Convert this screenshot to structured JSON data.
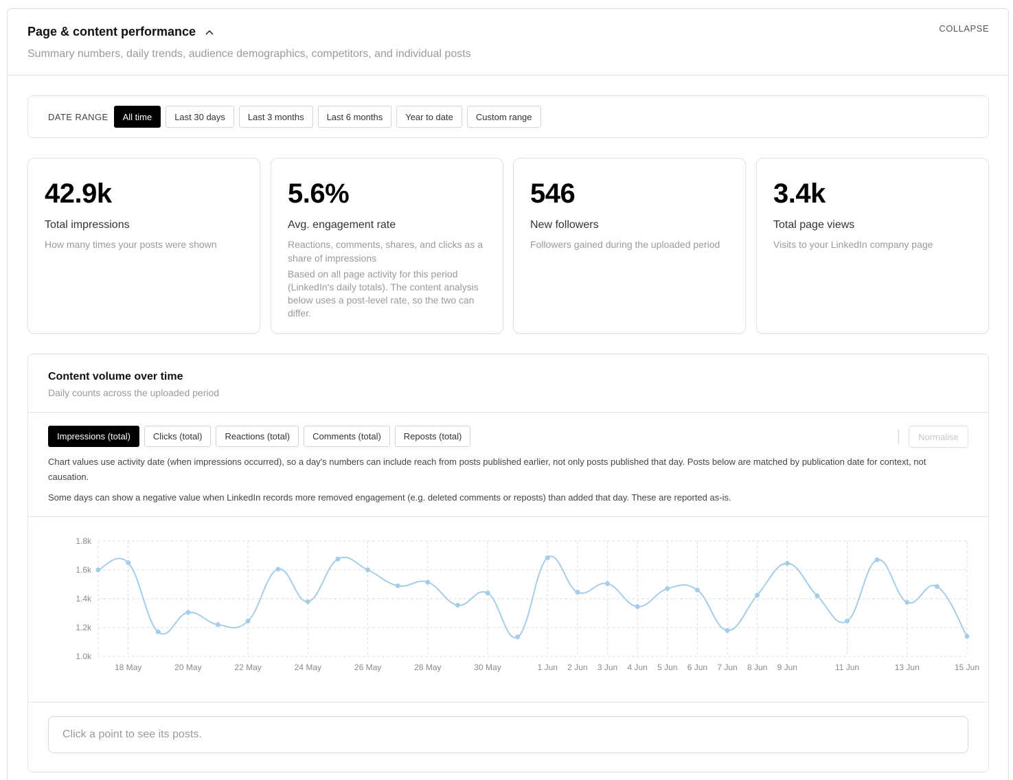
{
  "header": {
    "title": "Page & content performance",
    "subtitle": "Summary numbers, daily trends, audience demographics, competitors, and individual posts",
    "collapse_label": "COLLAPSE"
  },
  "date_range": {
    "label": "DATE RANGE",
    "options": [
      "All time",
      "Last 30 days",
      "Last 3 months",
      "Last 6 months",
      "Year to date",
      "Custom range"
    ],
    "selected": "All time"
  },
  "cards": [
    {
      "value": "42.9k",
      "name": "Total impressions",
      "desc": "How many times your posts were shown",
      "desc2": ""
    },
    {
      "value": "5.6%",
      "name": "Avg. engagement rate",
      "desc": "Reactions, comments, shares, and clicks as a share of impressions",
      "desc2": "Based on all page activity for this period (LinkedIn's daily totals). The content analysis below uses a post-level rate, so the two can differ."
    },
    {
      "value": "546",
      "name": "New followers",
      "desc": "Followers gained during the uploaded period",
      "desc2": ""
    },
    {
      "value": "3.4k",
      "name": "Total page views",
      "desc": "Visits to your LinkedIn company page",
      "desc2": ""
    }
  ],
  "content_volume": {
    "title": "Content volume over time",
    "subtitle": "Daily counts across the uploaded period",
    "metric_tabs": [
      "Impressions (total)",
      "Clicks (total)",
      "Reactions (total)",
      "Comments (total)",
      "Reposts (total)"
    ],
    "selected_metric": "Impressions (total)",
    "normalise_label": "Normalise",
    "note1": "Chart values use activity date (when impressions occurred), so a day's numbers can include reach from posts published earlier, not only posts published that day. Posts below are matched by publication date for context, not causation.",
    "note2": "Some days can show a negative value when LinkedIn records more removed engagement (e.g. deleted comments or reposts) than added that day. These are reported as-is.",
    "posts_hint": "Click a point to see its posts."
  },
  "colors": {
    "line": "#a6cde8",
    "active_pill": "#000000",
    "grid": "#dddddd"
  },
  "chart_data": {
    "type": "line",
    "x": [
      "17 May",
      "18 May",
      "19 May",
      "20 May",
      "21 May",
      "22 May",
      "23 May",
      "24 May",
      "25 May",
      "26 May",
      "27 May",
      "28 May",
      "29 May",
      "30 May",
      "31 May",
      "1 Jun",
      "2 Jun",
      "3 Jun",
      "4 Jun",
      "5 Jun",
      "6 Jun",
      "7 Jun",
      "8 Jun",
      "9 Jun",
      "10 Jun",
      "11 Jun",
      "12 Jun",
      "13 Jun",
      "14 Jun",
      "15 Jun"
    ],
    "series": [
      {
        "values": [
          1600,
          1650,
          1170,
          1305,
          1220,
          1245,
          1605,
          1380,
          1675,
          1600,
          1490,
          1515,
          1355,
          1440,
          1135,
          1685,
          1445,
          1505,
          1345,
          1470,
          1460,
          1180,
          1425,
          1645,
          1420,
          1245,
          1670,
          1375,
          1485,
          1140
        ]
      }
    ],
    "x_tick_labels": [
      "18 May",
      "20 May",
      "22 May",
      "24 May",
      "26 May",
      "28 May",
      "30 May",
      "1 Jun",
      "2 Jun",
      "3 Jun",
      "4 Jun",
      "5 Jun",
      "6 Jun",
      "7 Jun",
      "8 Jun",
      "9 Jun",
      "11 Jun",
      "13 Jun",
      "15 Jun"
    ],
    "y_tick_labels": [
      "1.0k",
      "1.2k",
      "1.4k",
      "1.6k",
      "1.8k"
    ],
    "ylim": [
      1000,
      1800
    ],
    "grid": true
  }
}
